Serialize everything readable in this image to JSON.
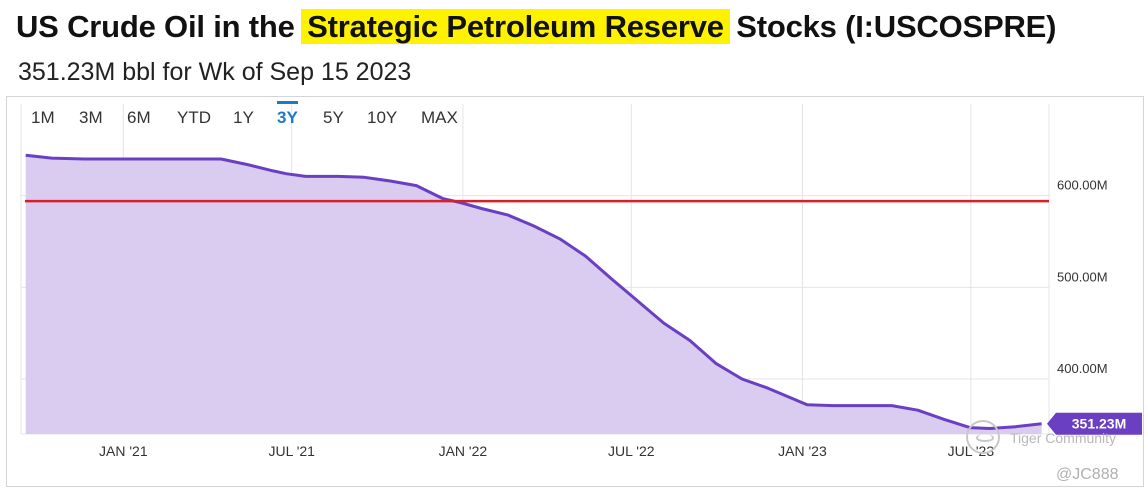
{
  "header": {
    "title_pre": "US Crude Oil in the ",
    "title_highlight": "Strategic Petroleum Reserve",
    "title_post": " Stocks (I:USCOSPRE)",
    "subtitle": "351.23M bbl for Wk of Sep 15 2023"
  },
  "range_tabs": {
    "items": [
      "1M",
      "3M",
      "6M",
      "YTD",
      "1Y",
      "3Y",
      "5Y",
      "10Y",
      "MAX"
    ],
    "active": "3Y"
  },
  "watermark": {
    "line1": "Tiger Community",
    "line2": "@JC888"
  },
  "colors": {
    "highlight": "#fff200",
    "series_line": "#6a3fc2",
    "series_fill": "#d9ccf0",
    "reference_line": "#d61f26",
    "active_tab": "#1a7bc8",
    "last_badge": "#6a3fc2"
  },
  "chart_data": {
    "type": "area",
    "title": "US Crude Oil in the Strategic Petroleum Reserve Stocks (I:USCOSPRE)",
    "ylabel": "",
    "xlabel": "",
    "units": "M bbl",
    "ylim": [
      340,
      700
    ],
    "y_ticks": [
      400,
      500,
      600
    ],
    "y_tick_labels": [
      "400.00M",
      "500.00M",
      "600.00M"
    ],
    "x_tick_labels": [
      "JAN '21",
      "JUL '21",
      "JAN '22",
      "JUL '22",
      "JAN '23",
      "JUL '23"
    ],
    "x_tick_dates": [
      "2021-01-01",
      "2021-07-01",
      "2022-01-01",
      "2022-07-01",
      "2023-01-01",
      "2023-07-01"
    ],
    "grid": true,
    "reference_line": {
      "value": 594
    },
    "last_value_label": "351.23M",
    "series": [
      {
        "points": [
          [
            "2020-09-18",
            644
          ],
          [
            "2020-10-16",
            641
          ],
          [
            "2020-11-20",
            640
          ],
          [
            "2020-12-18",
            640
          ],
          [
            "2021-01-15",
            640
          ],
          [
            "2021-02-19",
            640
          ],
          [
            "2021-03-19",
            640
          ],
          [
            "2021-04-16",
            640
          ],
          [
            "2021-05-14",
            634
          ],
          [
            "2021-06-11",
            627
          ],
          [
            "2021-06-25",
            624
          ],
          [
            "2021-07-16",
            621
          ],
          [
            "2021-08-20",
            621
          ],
          [
            "2021-09-17",
            620
          ],
          [
            "2021-10-15",
            616
          ],
          [
            "2021-11-12",
            611
          ],
          [
            "2021-12-10",
            597
          ],
          [
            "2021-12-31",
            592
          ],
          [
            "2022-01-21",
            586
          ],
          [
            "2022-02-18",
            579
          ],
          [
            "2022-03-18",
            567
          ],
          [
            "2022-04-15",
            553
          ],
          [
            "2022-05-13",
            534
          ],
          [
            "2022-06-10",
            509
          ],
          [
            "2022-07-08",
            485
          ],
          [
            "2022-08-05",
            461
          ],
          [
            "2022-09-02",
            442
          ],
          [
            "2022-09-30",
            417
          ],
          [
            "2022-10-28",
            400
          ],
          [
            "2022-11-25",
            390
          ],
          [
            "2022-12-23",
            378
          ],
          [
            "2023-01-06",
            372
          ],
          [
            "2023-02-03",
            371
          ],
          [
            "2023-03-03",
            371
          ],
          [
            "2023-04-07",
            371
          ],
          [
            "2023-05-05",
            366
          ],
          [
            "2023-06-02",
            356
          ],
          [
            "2023-06-30",
            347
          ],
          [
            "2023-07-21",
            346
          ],
          [
            "2023-08-18",
            348
          ],
          [
            "2023-09-15",
            351.23
          ]
        ]
      }
    ]
  }
}
